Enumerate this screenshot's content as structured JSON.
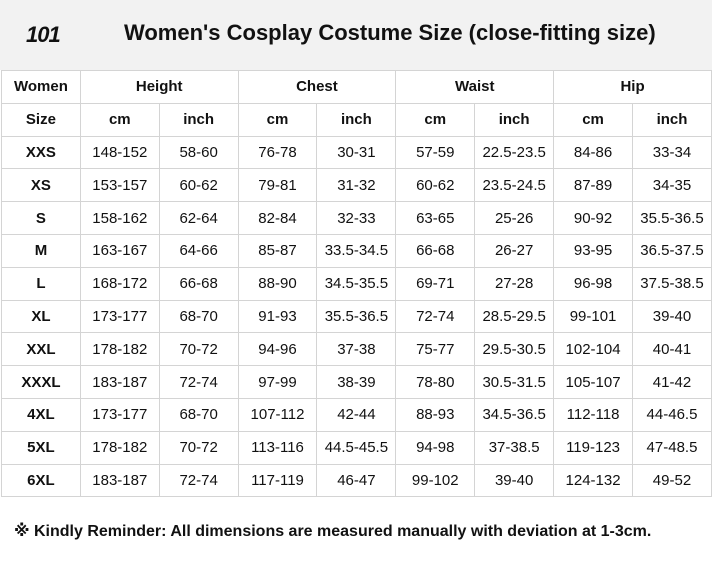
{
  "brand": "101",
  "title": "Women's Cosplay Costume Size (close-fitting size)",
  "header_row1": {
    "women": "Women",
    "height": "Height",
    "chest": "Chest",
    "waist": "Waist",
    "hip": "Hip"
  },
  "header_row2": [
    "Size",
    "cm",
    "inch",
    "cm",
    "inch",
    "cm",
    "inch",
    "cm",
    "inch"
  ],
  "rows": [
    [
      "XXS",
      "148-152",
      "58-60",
      "76-78",
      "30-31",
      "57-59",
      "22.5-23.5",
      "84-86",
      "33-34"
    ],
    [
      "XS",
      "153-157",
      "60-62",
      "79-81",
      "31-32",
      "60-62",
      "23.5-24.5",
      "87-89",
      "34-35"
    ],
    [
      "S",
      "158-162",
      "62-64",
      "82-84",
      "32-33",
      "63-65",
      "25-26",
      "90-92",
      "35.5-36.5"
    ],
    [
      "M",
      "163-167",
      "64-66",
      "85-87",
      "33.5-34.5",
      "66-68",
      "26-27",
      "93-95",
      "36.5-37.5"
    ],
    [
      "L",
      "168-172",
      "66-68",
      "88-90",
      "34.5-35.5",
      "69-71",
      "27-28",
      "96-98",
      "37.5-38.5"
    ],
    [
      "XL",
      "173-177",
      "68-70",
      "91-93",
      "35.5-36.5",
      "72-74",
      "28.5-29.5",
      "99-101",
      "39-40"
    ],
    [
      "XXL",
      "178-182",
      "70-72",
      "94-96",
      "37-38",
      "75-77",
      "29.5-30.5",
      "102-104",
      "40-41"
    ],
    [
      "XXXL",
      "183-187",
      "72-74",
      "97-99",
      "38-39",
      "78-80",
      "30.5-31.5",
      "105-107",
      "41-42"
    ],
    [
      "4XL",
      "173-177",
      "68-70",
      "107-112",
      "42-44",
      "88-93",
      "34.5-36.5",
      "112-118",
      "44-46.5"
    ],
    [
      "5XL",
      "178-182",
      "70-72",
      "113-116",
      "44.5-45.5",
      "94-98",
      "37-38.5",
      "119-123",
      "47-48.5"
    ],
    [
      "6XL",
      "183-187",
      "72-74",
      "117-119",
      "46-47",
      "99-102",
      "39-40",
      "124-132",
      "49-52"
    ]
  ],
  "reminder": "※ Kindly Reminder: All dimensions are measured manually with deviation at 1-3cm."
}
